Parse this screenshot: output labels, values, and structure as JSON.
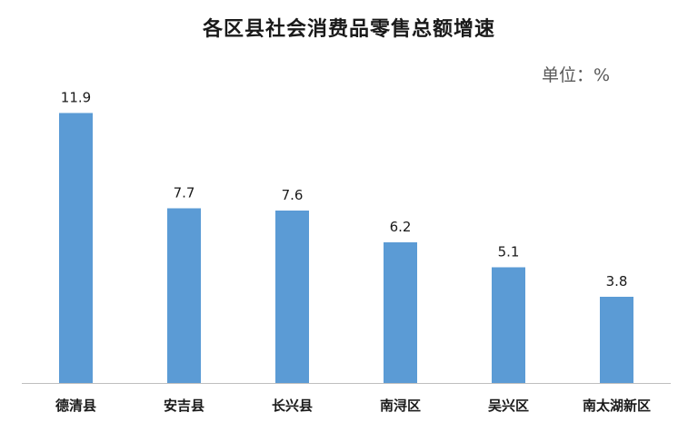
{
  "chart_data": {
    "type": "bar",
    "title": "各区县社会消费品零售总额增速",
    "unit": "单位：%",
    "categories": [
      "德清县",
      "安吉县",
      "长兴县",
      "南浔区",
      "吴兴区",
      "南太湖新区"
    ],
    "values": [
      11.9,
      7.7,
      7.6,
      6.2,
      5.1,
      3.8
    ],
    "ylim": [
      0,
      13.5
    ],
    "grid": false,
    "legend": "none",
    "colors": {
      "bar": "#5b9bd5",
      "axis": "#bfbfbf"
    }
  }
}
